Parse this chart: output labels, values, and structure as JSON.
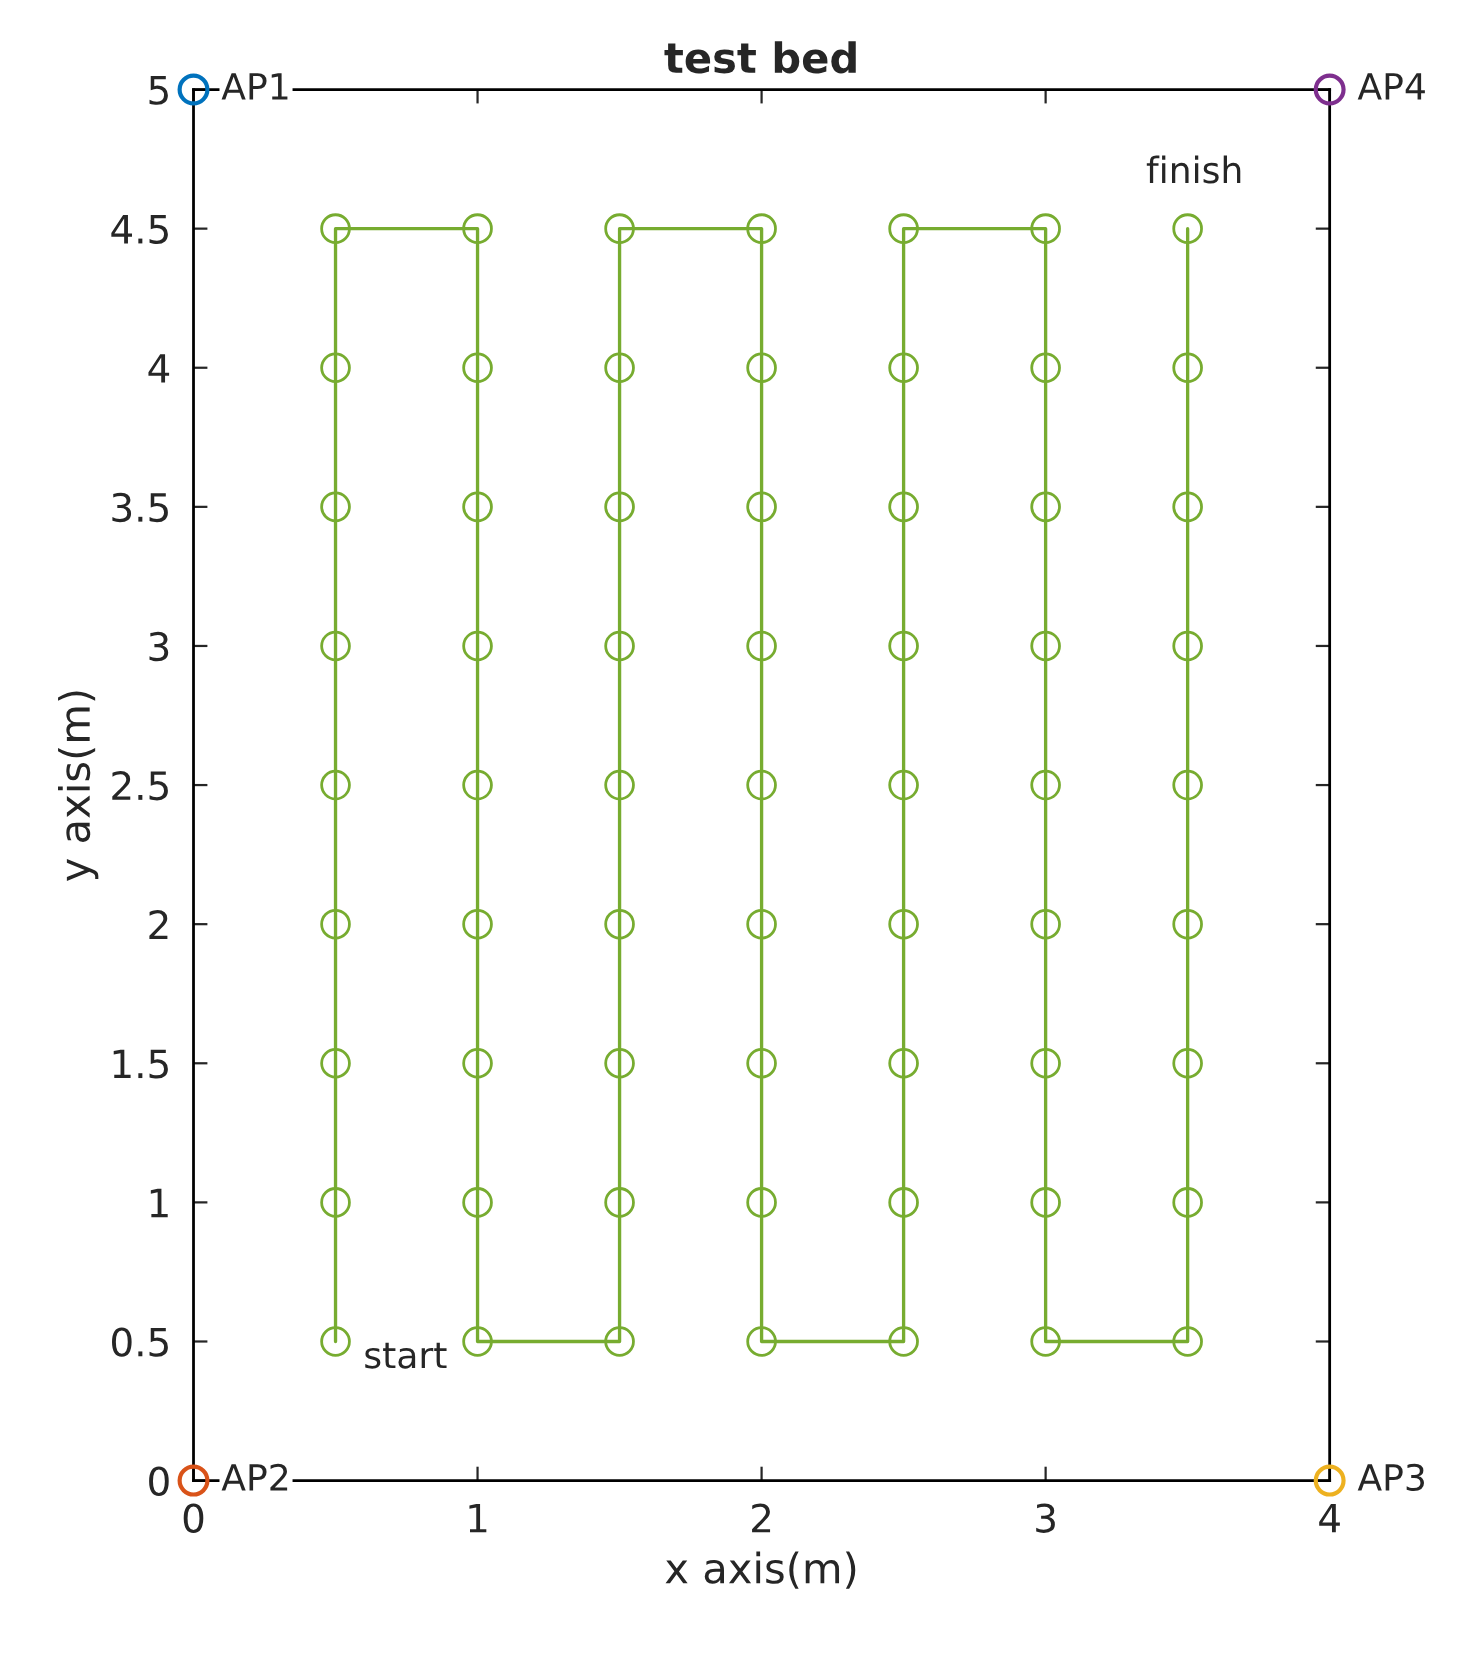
{
  "chart_data": {
    "type": "line",
    "title": "test bed",
    "xlabel": "x axis(m)",
    "ylabel": "y axis(m)",
    "xlim": [
      0,
      4
    ],
    "ylim": [
      0,
      5
    ],
    "xticks": [
      0,
      1,
      2,
      3,
      4
    ],
    "yticks": [
      0,
      0.5,
      1,
      1.5,
      2,
      2.5,
      3,
      3.5,
      4,
      4.5,
      5
    ],
    "grid": false,
    "legend": false,
    "marker": "circle",
    "line_style": "solid",
    "series": [
      {
        "color": "#77ac30",
        "x": [
          0.5,
          0.5,
          0.5,
          0.5,
          0.5,
          0.5,
          0.5,
          0.5,
          0.5,
          1,
          1,
          1,
          1,
          1,
          1,
          1,
          1,
          1,
          1.5,
          1.5,
          1.5,
          1.5,
          1.5,
          1.5,
          1.5,
          1.5,
          1.5,
          2,
          2,
          2,
          2,
          2,
          2,
          2,
          2,
          2,
          2.5,
          2.5,
          2.5,
          2.5,
          2.5,
          2.5,
          2.5,
          2.5,
          2.5,
          3,
          3,
          3,
          3,
          3,
          3,
          3,
          3,
          3,
          3.5,
          3.5,
          3.5,
          3.5,
          3.5,
          3.5,
          3.5,
          3.5,
          3.5
        ],
        "values": [
          0.5,
          1,
          1.5,
          2,
          2.5,
          3,
          3.5,
          4,
          4.5,
          4.5,
          4,
          3.5,
          3,
          2.5,
          2,
          1.5,
          1,
          0.5,
          0.5,
          1,
          1.5,
          2,
          2.5,
          3,
          3.5,
          4,
          4.5,
          4.5,
          4,
          3.5,
          3,
          2.5,
          2,
          1.5,
          1,
          0.5,
          0.5,
          1,
          1.5,
          2,
          2.5,
          3,
          3.5,
          4,
          4.5,
          4.5,
          4,
          3.5,
          3,
          2.5,
          2,
          1.5,
          1,
          0.5,
          0.5,
          1,
          1.5,
          2,
          2.5,
          3,
          3.5,
          4,
          4.5
        ]
      },
      {
        "type": "scatter",
        "name": "AP1",
        "color": "#0072bd",
        "x": [
          0
        ],
        "values": [
          5
        ]
      },
      {
        "type": "scatter",
        "name": "AP2",
        "color": "#d95319",
        "x": [
          0
        ],
        "values": [
          0
        ]
      },
      {
        "type": "scatter",
        "name": "AP3",
        "color": "#edb120",
        "x": [
          4
        ],
        "values": [
          0
        ]
      },
      {
        "type": "scatter",
        "name": "AP4",
        "color": "#7e2f8e",
        "x": [
          4
        ],
        "values": [
          5
        ]
      }
    ],
    "annotations": [
      {
        "text": "start",
        "x": 0.5,
        "y": 0.5
      },
      {
        "text": "finish",
        "x": 3.5,
        "y": 4.5
      }
    ]
  }
}
